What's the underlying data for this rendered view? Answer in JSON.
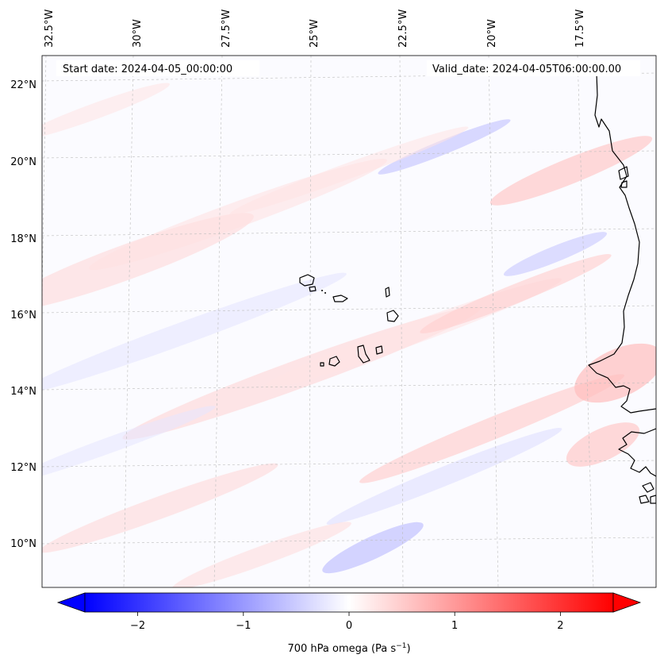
{
  "map": {
    "start_date_label": "Start date: 2024-04-05_00:00:00",
    "valid_date_label": "Valid_date: 2024-04-05T06:00:00.00",
    "longitude_labels": [
      "32.5°W",
      "30°W",
      "27.5°W",
      "25°W",
      "22.5°W",
      "20°W",
      "17.5°W"
    ],
    "latitude_labels": [
      "22°N",
      "20°N",
      "18°N",
      "16°N",
      "14°N",
      "12°N",
      "10°N"
    ],
    "field": "700 hPa omega",
    "colors": {
      "negative": "#0000ff",
      "neutral": "#ffffff",
      "positive": "#ff0000",
      "coastline": "#000000"
    }
  },
  "colorbar": {
    "label_main": "700 hPa omega (Pa s",
    "label_exp": "−1",
    "label_close": ")",
    "ticks": [
      "−2",
      "−1",
      "0",
      "1",
      "2"
    ],
    "tick_values": [
      -2,
      -1,
      0,
      1,
      2
    ],
    "range": [
      -2.5,
      2.5
    ],
    "extend": "both"
  }
}
